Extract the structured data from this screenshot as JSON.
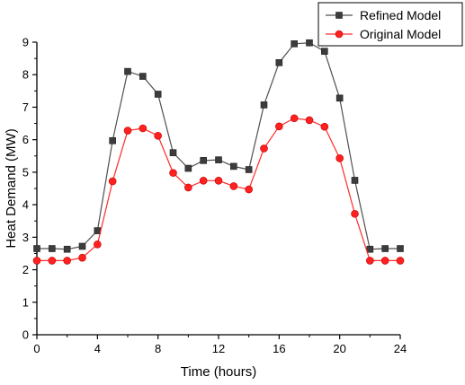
{
  "chart_data": {
    "type": "line",
    "xlabel": "Time (hours)",
    "ylabel": "Heat Demand (MW)",
    "xlim": [
      0,
      24
    ],
    "ylim": [
      0,
      9
    ],
    "xticks": [
      0,
      4,
      8,
      12,
      16,
      20,
      24
    ],
    "yticks": [
      0,
      1,
      2,
      3,
      4,
      5,
      6,
      7,
      8,
      9
    ],
    "grid": false,
    "legend_position": "top-right",
    "x": [
      0,
      1,
      2,
      3,
      4,
      5,
      6,
      7,
      8,
      9,
      10,
      11,
      12,
      13,
      14,
      15,
      16,
      17,
      18,
      19,
      20,
      21,
      22,
      23,
      24
    ],
    "series": [
      {
        "name": "Refined Model",
        "color": "#505050",
        "marker": "square",
        "values": [
          2.65,
          2.65,
          2.63,
          2.72,
          3.2,
          5.97,
          8.1,
          7.95,
          7.4,
          5.6,
          5.12,
          5.36,
          5.38,
          5.18,
          5.08,
          7.07,
          8.37,
          8.95,
          8.98,
          8.72,
          7.28,
          4.75,
          2.63,
          2.65,
          2.65
        ]
      },
      {
        "name": "Original Model",
        "color": "#ff2a2a",
        "marker": "circle",
        "values": [
          2.28,
          2.28,
          2.28,
          2.37,
          2.78,
          4.72,
          6.28,
          6.35,
          6.12,
          4.98,
          4.53,
          4.74,
          4.74,
          4.57,
          4.47,
          5.73,
          6.41,
          6.66,
          6.6,
          6.4,
          5.43,
          3.72,
          2.28,
          2.28,
          2.28
        ]
      }
    ]
  }
}
